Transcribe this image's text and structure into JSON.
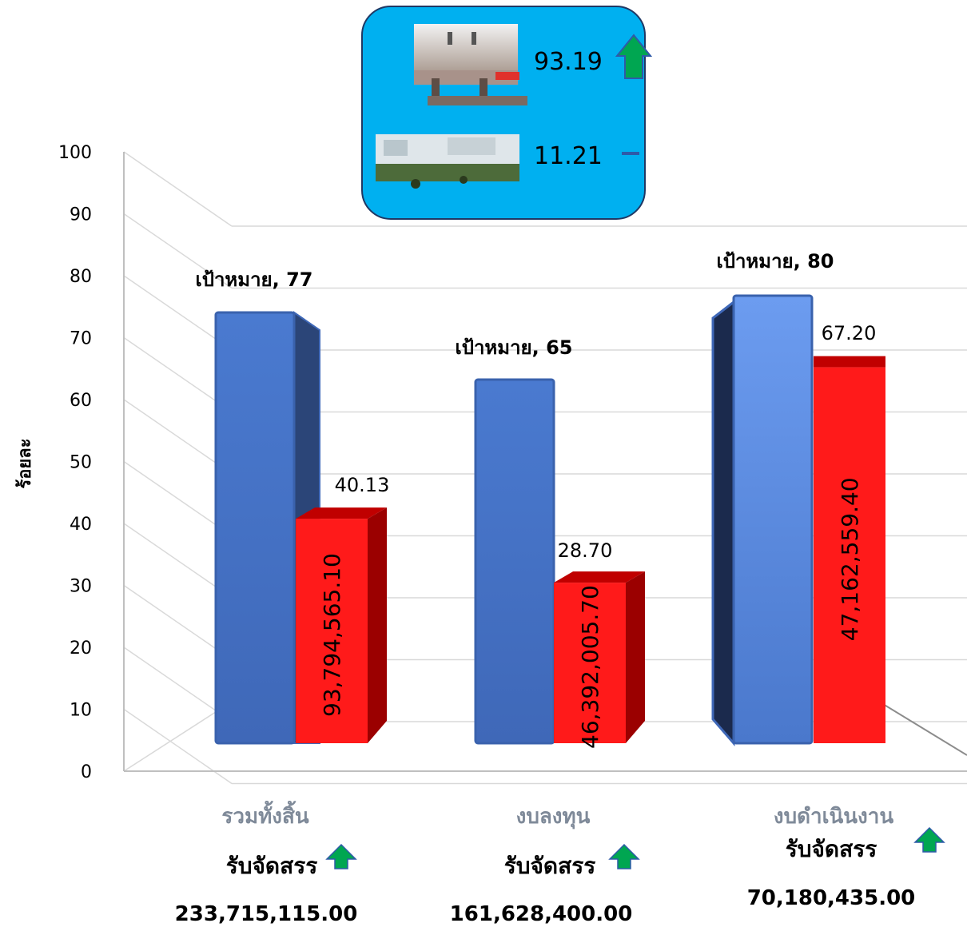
{
  "badge": {
    "value_top": "93.19",
    "value_bottom": "11.21",
    "color": "#00b0f0"
  },
  "chart_data": {
    "type": "bar",
    "ylabel": "ร้อยละ",
    "ylim": [
      0,
      100
    ],
    "yticks": [
      0,
      10,
      20,
      30,
      40,
      50,
      60,
      70,
      80,
      90,
      100
    ],
    "grid": true,
    "categories": [
      "รวมทั้งสิ้น",
      "งบลงทุน",
      "งบดำเนินงาน"
    ],
    "series": [
      {
        "color": "#4472c4",
        "values": [
          77,
          65,
          80
        ],
        "labels": [
          "เป้าหมาย, 77",
          "เป้าหมาย, 65",
          "เป้าหมาย, 80"
        ]
      },
      {
        "color": "#ff0000",
        "values": [
          40.13,
          28.7,
          67.2
        ],
        "labels": [
          "40.13",
          "28.70",
          "67.20"
        ],
        "inner_labels": [
          "93,794,565.10",
          "46,392,005.70",
          "47,162,559.40"
        ]
      }
    ],
    "received_label": "รับจัดสรร",
    "received_amounts": [
      "233,715,115.00",
      "161,628,400.00",
      "70,180,435.00"
    ]
  }
}
